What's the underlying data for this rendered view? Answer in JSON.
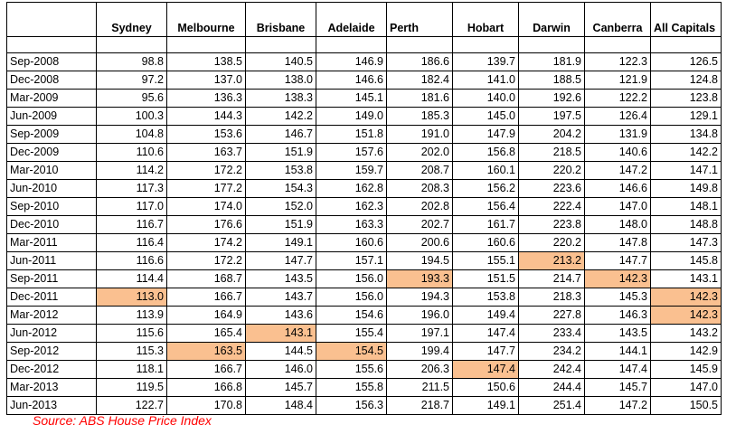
{
  "table": {
    "corner": "",
    "headers": [
      "Sydney",
      "Melbourne",
      "Brisbane",
      "Adelaide",
      "Perth",
      "Hobart",
      "Darwin",
      "Canberra",
      "All Capitals"
    ],
    "rows": [
      {
        "date": "Sep-2008",
        "values": [
          "98.8",
          "138.5",
          "140.5",
          "146.9",
          "186.6",
          "139.7",
          "181.9",
          "122.3",
          "126.5"
        ],
        "highlight": []
      },
      {
        "date": "Dec-2008",
        "values": [
          "97.2",
          "137.0",
          "138.0",
          "146.6",
          "182.4",
          "141.0",
          "188.5",
          "121.9",
          "124.8"
        ],
        "highlight": []
      },
      {
        "date": "Mar-2009",
        "values": [
          "95.6",
          "136.3",
          "138.3",
          "145.1",
          "181.6",
          "140.0",
          "192.6",
          "122.2",
          "123.8"
        ],
        "highlight": []
      },
      {
        "date": "Jun-2009",
        "values": [
          "100.3",
          "144.3",
          "142.2",
          "149.0",
          "185.3",
          "145.0",
          "197.5",
          "126.4",
          "129.1"
        ],
        "highlight": []
      },
      {
        "date": "Sep-2009",
        "values": [
          "104.8",
          "153.6",
          "146.7",
          "151.8",
          "191.0",
          "147.9",
          "204.2",
          "131.9",
          "134.8"
        ],
        "highlight": []
      },
      {
        "date": "Dec-2009",
        "values": [
          "110.6",
          "163.7",
          "151.9",
          "157.6",
          "202.0",
          "156.8",
          "218.5",
          "140.6",
          "142.2"
        ],
        "highlight": []
      },
      {
        "date": "Mar-2010",
        "values": [
          "114.2",
          "172.2",
          "153.8",
          "159.7",
          "208.7",
          "160.1",
          "220.2",
          "147.2",
          "147.1"
        ],
        "highlight": []
      },
      {
        "date": "Jun-2010",
        "values": [
          "117.3",
          "177.2",
          "154.3",
          "162.8",
          "208.3",
          "156.2",
          "223.6",
          "146.6",
          "149.8"
        ],
        "highlight": []
      },
      {
        "date": "Sep-2010",
        "values": [
          "117.0",
          "174.0",
          "152.0",
          "162.3",
          "202.8",
          "156.4",
          "222.4",
          "147.0",
          "148.1"
        ],
        "highlight": []
      },
      {
        "date": "Dec-2010",
        "values": [
          "116.7",
          "176.6",
          "151.9",
          "163.3",
          "202.7",
          "161.7",
          "223.8",
          "148.0",
          "148.8"
        ],
        "highlight": []
      },
      {
        "date": "Mar-2011",
        "values": [
          "116.4",
          "174.2",
          "149.1",
          "160.6",
          "200.6",
          "160.6",
          "220.2",
          "147.8",
          "147.3"
        ],
        "highlight": []
      },
      {
        "date": "Jun-2011",
        "values": [
          "116.6",
          "172.2",
          "147.7",
          "157.1",
          "194.5",
          "155.1",
          "213.2",
          "147.7",
          "145.8"
        ],
        "highlight": [
          6
        ]
      },
      {
        "date": "Sep-2011",
        "values": [
          "114.4",
          "168.7",
          "143.5",
          "156.0",
          "193.3",
          "151.5",
          "214.7",
          "142.3",
          "143.1"
        ],
        "highlight": [
          4,
          7
        ]
      },
      {
        "date": "Dec-2011",
        "values": [
          "113.0",
          "166.7",
          "143.7",
          "156.0",
          "194.3",
          "153.8",
          "218.3",
          "145.3",
          "142.3"
        ],
        "highlight": [
          0,
          8
        ]
      },
      {
        "date": "Mar-2012",
        "values": [
          "113.9",
          "164.9",
          "143.6",
          "154.6",
          "196.0",
          "149.4",
          "227.8",
          "146.3",
          "142.3"
        ],
        "highlight": [
          8
        ]
      },
      {
        "date": "Jun-2012",
        "values": [
          "115.6",
          "165.4",
          "143.1",
          "155.4",
          "197.1",
          "147.4",
          "233.4",
          "143.5",
          "143.2"
        ],
        "highlight": [
          2
        ]
      },
      {
        "date": "Sep-2012",
        "values": [
          "115.3",
          "163.5",
          "144.5",
          "154.5",
          "199.4",
          "147.7",
          "234.2",
          "144.1",
          "142.9"
        ],
        "highlight": [
          1,
          3
        ]
      },
      {
        "date": "Dec-2012",
        "values": [
          "118.1",
          "166.7",
          "146.0",
          "155.6",
          "206.3",
          "147.4",
          "242.4",
          "147.4",
          "145.9"
        ],
        "highlight": [
          5
        ]
      },
      {
        "date": "Mar-2013",
        "values": [
          "119.5",
          "166.8",
          "145.7",
          "155.8",
          "211.5",
          "150.6",
          "244.4",
          "145.7",
          "147.0"
        ],
        "highlight": []
      },
      {
        "date": "Jun-2013",
        "values": [
          "122.7",
          "170.8",
          "148.4",
          "156.3",
          "218.7",
          "149.1",
          "251.4",
          "147.2",
          "150.5"
        ],
        "highlight": []
      }
    ]
  },
  "source": "Source: ABS House Price Index",
  "colors": {
    "highlight": "#fac090",
    "source_text": "#ff0000",
    "border": "#000000"
  }
}
